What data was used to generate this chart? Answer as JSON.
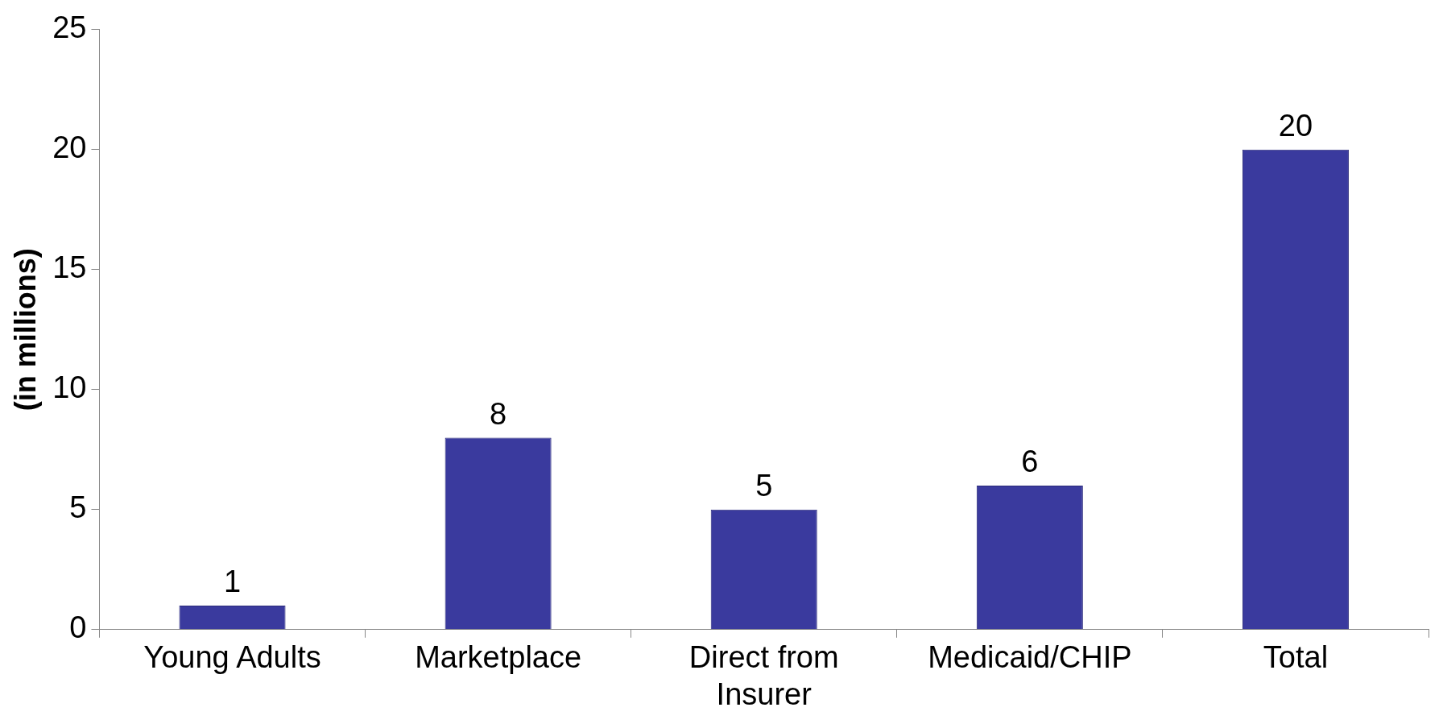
{
  "chart_data": {
    "type": "bar",
    "ylabel": "(in millions)",
    "categories": [
      "Young Adults",
      "Marketplace",
      "Direct from Insurer",
      "Medicaid/CHIP",
      "Total"
    ],
    "values": [
      1,
      8,
      5,
      6,
      20
    ],
    "color": "#3a3a9e",
    "ylim": [
      0,
      25
    ],
    "yticks": [
      0,
      5,
      10,
      15,
      20,
      25
    ],
    "grid": false,
    "legend": false,
    "data_labels": true
  }
}
